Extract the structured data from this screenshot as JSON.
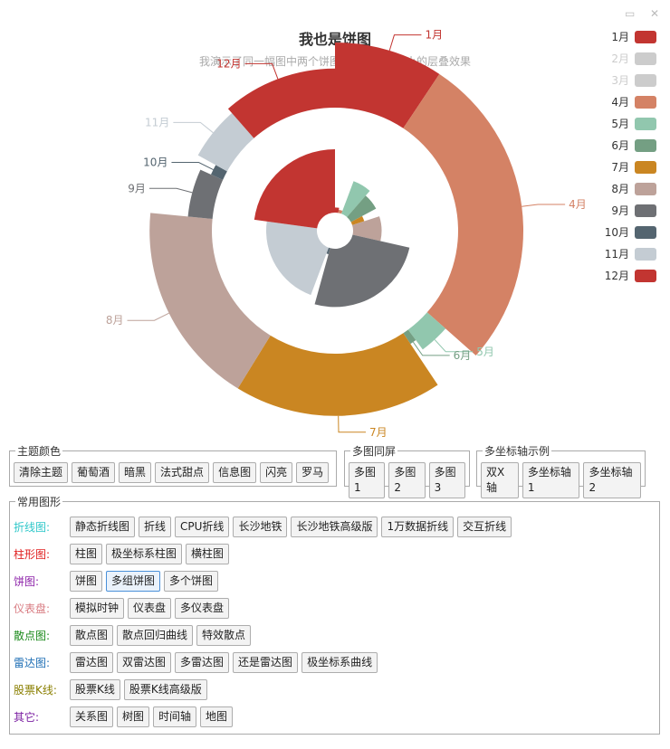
{
  "window": {
    "minimize_glyph": "▭",
    "close_glyph": "✕"
  },
  "chart_data": {
    "type": "pie",
    "title": "我也是饼图",
    "subtitle": "我演示了同一幅图中两个饼图同位置不同大小的层叠效果",
    "center": [
      370,
      255
    ],
    "legend_position": "right",
    "legend": [
      {
        "name": "1月",
        "color": "#c23531",
        "active": true
      },
      {
        "name": "2月",
        "color": "#cccccc",
        "active": false
      },
      {
        "name": "3月",
        "color": "#cccccc",
        "active": false
      },
      {
        "name": "4月",
        "color": "#d48265",
        "active": true
      },
      {
        "name": "5月",
        "color": "#91c7ae",
        "active": true
      },
      {
        "name": "6月",
        "color": "#749f83",
        "active": true
      },
      {
        "name": "7月",
        "color": "#ca8622",
        "active": true
      },
      {
        "name": "8月",
        "color": "#bda29a",
        "active": true
      },
      {
        "name": "9月",
        "color": "#6e7074",
        "active": true
      },
      {
        "name": "10月",
        "color": "#546570",
        "active": true
      },
      {
        "name": "11月",
        "color": "#c4ccd3",
        "active": true
      },
      {
        "name": "12月",
        "color": "#c23531",
        "active": true
      }
    ],
    "inner_series": {
      "type": "rose",
      "slices": [
        {
          "name": "1月",
          "value": 1,
          "length": 0.08,
          "color": "#c23531"
        },
        {
          "name": "4月",
          "value": 1,
          "length": 0.05,
          "color": "#d48265"
        },
        {
          "name": "5月",
          "value": 2,
          "length": 0.55,
          "color": "#91c7ae"
        },
        {
          "name": "6月",
          "value": 2,
          "length": 0.45,
          "color": "#749f83"
        },
        {
          "name": "7月",
          "value": 1,
          "length": 0.2,
          "color": "#ca8622"
        },
        {
          "name": "8月",
          "value": 3,
          "length": 0.45,
          "color": "#bda29a"
        },
        {
          "name": "9月",
          "value": 9,
          "length": 0.92,
          "color": "#6e7074"
        },
        {
          "name": "10月",
          "value": 0.5,
          "length": 0.1,
          "color": "#546570"
        },
        {
          "name": "11月",
          "value": 7.5,
          "length": 0.8,
          "color": "#c4ccd3"
        },
        {
          "name": "12月",
          "value": 8,
          "length": 1.0,
          "color": "#c23531"
        }
      ]
    },
    "outer_series": {
      "type": "pie",
      "start_angle": 0,
      "slices": [
        {
          "name": "1月",
          "value": 9.8,
          "thickness": 1.0,
          "color": "#c23531",
          "label": "1月"
        },
        {
          "name": "4月",
          "value": 28.5,
          "thickness": 1.0,
          "color": "#d48265",
          "label": "4月"
        },
        {
          "name": "5月",
          "value": 3.5,
          "thickness": 0.3,
          "color": "#91c7ae",
          "label": "5月"
        },
        {
          "name": "6月",
          "value": 0.8,
          "thickness": 0.1,
          "color": "#749f83",
          "label": "6月"
        },
        {
          "name": "7月",
          "value": 19.0,
          "thickness": 0.95,
          "color": "#ca8622",
          "label": "7月"
        },
        {
          "name": "8月",
          "value": 18.6,
          "thickness": 0.95,
          "color": "#bda29a",
          "label": "8月"
        },
        {
          "name": "9月",
          "value": 5.5,
          "thickness": 0.3,
          "color": "#6e7074",
          "label": "9月"
        },
        {
          "name": "10月",
          "value": 1.3,
          "thickness": 0.1,
          "color": "#546570",
          "label": "10月"
        },
        {
          "name": "11月",
          "value": 5.8,
          "thickness": 0.45,
          "color": "#c4ccd3",
          "label": "11月"
        },
        {
          "name": "12月",
          "value": 12.0,
          "thickness": 0.55,
          "color": "#c23531",
          "label": "12月"
        }
      ]
    }
  },
  "panels": {
    "theme": {
      "legend": "主题颜色",
      "buttons": [
        "清除主题",
        "葡萄酒",
        "暗黑",
        "法式甜点",
        "信息图",
        "闪亮",
        "罗马"
      ]
    },
    "multi": {
      "legend": "多图同屏",
      "buttons": [
        "多图1",
        "多图2",
        "多图3"
      ]
    },
    "axis": {
      "legend": "多坐标轴示例",
      "buttons": [
        "双X轴",
        "多坐标轴1",
        "多坐标轴2"
      ]
    },
    "common": {
      "legend": "常用图形",
      "rows": [
        {
          "label": "折线图:",
          "color": "#2ec7c9",
          "buttons": [
            "静态折线图",
            "折线",
            "CPU折线",
            "长沙地铁",
            "长沙地铁高级版",
            "1万数据折线",
            "交互折线"
          ]
        },
        {
          "label": "柱形图:",
          "color": "#e01f1f",
          "buttons": [
            "柱图",
            "极坐标系柱图",
            "横柱图"
          ]
        },
        {
          "label": "饼图:",
          "color": "#8e24aa",
          "buttons": [
            "饼图",
            "多组饼图",
            "多个饼图"
          ],
          "active_index": 1
        },
        {
          "label": "仪表盘:",
          "color": "#d87a80",
          "buttons": [
            "模拟时钟",
            "仪表盘",
            "多仪表盘"
          ]
        },
        {
          "label": "散点图:",
          "color": "#1b8a1b",
          "buttons": [
            "散点图",
            "散点回归曲线",
            "特效散点"
          ]
        },
        {
          "label": "雷达图:",
          "color": "#1f6fb5",
          "buttons": [
            "雷达图",
            "双雷达图",
            "多雷达图",
            "还是雷达图",
            "极坐标系曲线"
          ]
        },
        {
          "label": "股票K线:",
          "color": "#8a7f00",
          "buttons": [
            "股票K线",
            "股票K线高级版"
          ]
        },
        {
          "label": "其它:",
          "color": "#7b1fa2",
          "buttons": [
            "关系图",
            "树图",
            "时间轴",
            "地图"
          ]
        }
      ]
    }
  }
}
